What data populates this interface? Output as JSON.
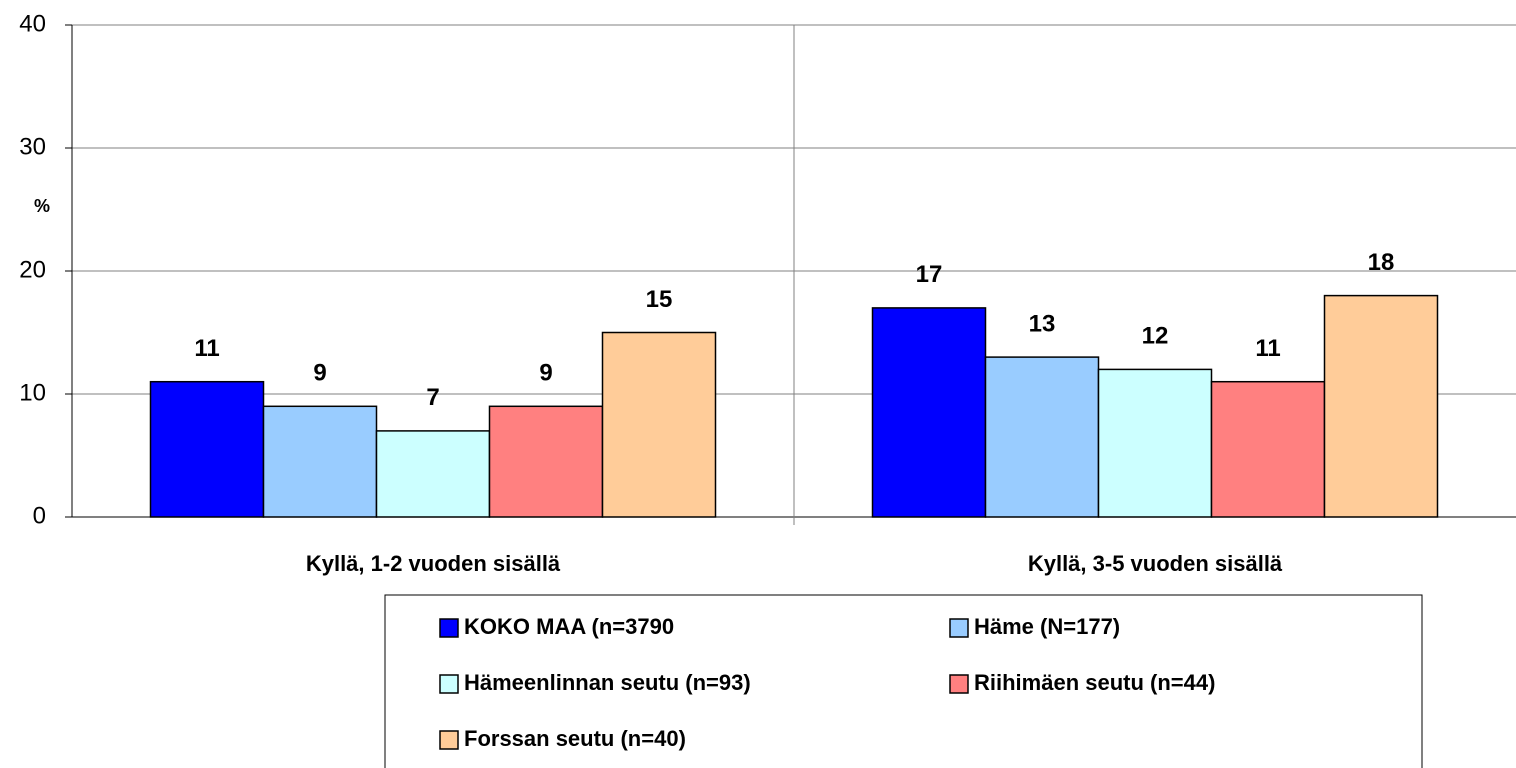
{
  "chart_data": {
    "type": "bar",
    "y_label": "%",
    "categories": [
      "Kyllä, 1-2 vuoden sisällä",
      "Kyllä, 3-5 vuoden sisällä"
    ],
    "series": [
      {
        "name": "KOKO MAA (n=3790",
        "color": "#0000ff",
        "values": [
          11,
          17
        ]
      },
      {
        "name": "Häme (N=177)",
        "color": "#99ccff",
        "values": [
          9,
          13
        ]
      },
      {
        "name": "Hämeenlinnan seutu (n=93)",
        "color": "#ccffff",
        "values": [
          7,
          12
        ]
      },
      {
        "name": "Riihimäen seutu (n=44)",
        "color": "#ff8080",
        "values": [
          9,
          11
        ]
      },
      {
        "name": "Forssan seutu (n=40)",
        "color": "#ffcc99",
        "values": [
          15,
          18
        ]
      }
    ],
    "ylim": [
      0,
      40
    ],
    "yticks": [
      0,
      10,
      20,
      30,
      40
    ],
    "grid": true,
    "legend": "bottom"
  }
}
